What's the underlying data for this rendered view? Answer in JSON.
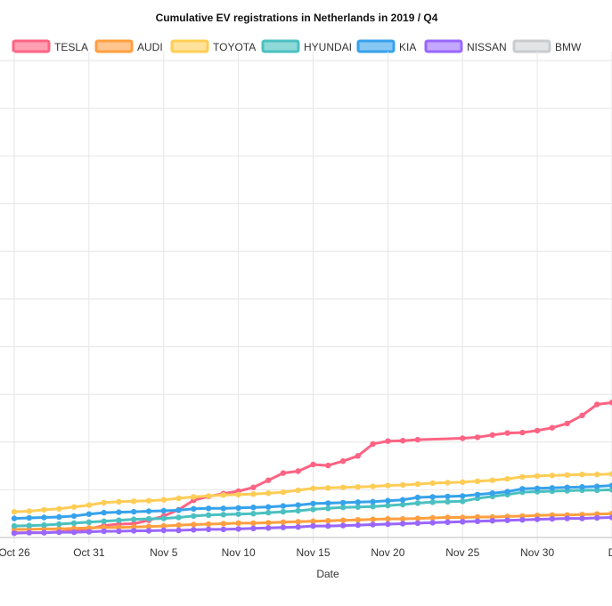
{
  "chart_data": {
    "type": "line",
    "title": "Cumulative EV registrations in Netherlands in 2019 / Q4",
    "xlabel": "Date",
    "ylabel": "",
    "x_axis": {
      "type": "date",
      "start": "2019-10-26",
      "end": "2019-12-05"
    },
    "x_ticks": [
      {
        "date": "2019-10-26",
        "label": "Oct 26"
      },
      {
        "date": "2019-10-31",
        "label": "Oct 31"
      },
      {
        "date": "2019-11-05",
        "label": "Nov 5"
      },
      {
        "date": "2019-11-10",
        "label": "Nov 10"
      },
      {
        "date": "2019-11-15",
        "label": "Nov 15"
      },
      {
        "date": "2019-11-20",
        "label": "Nov 20"
      },
      {
        "date": "2019-11-25",
        "label": "Nov 25"
      },
      {
        "date": "2019-11-30",
        "label": "Nov 30"
      },
      {
        "date": "2019-12-05",
        "label": "D"
      }
    ],
    "ylim": [
      0,
      100
    ],
    "y_gridlines": [
      0,
      10,
      20,
      30,
      40,
      50,
      60,
      70,
      80,
      90,
      100
    ],
    "grid": true,
    "legend": "top",
    "series": [
      {
        "name": "TESLA",
        "color": "#ff6384",
        "fill": "#ff9fb2",
        "points": [
          [
            "2019-10-26",
            1.0
          ],
          [
            "2019-10-28",
            1.0
          ],
          [
            "2019-10-29",
            1.2
          ],
          [
            "2019-10-30",
            1.4
          ],
          [
            "2019-10-31",
            1.8
          ],
          [
            "2019-11-01",
            2.5
          ],
          [
            "2019-11-02",
            2.8
          ],
          [
            "2019-11-03",
            2.9
          ],
          [
            "2019-11-04",
            3.6
          ],
          [
            "2019-11-05",
            4.5
          ],
          [
            "2019-11-06",
            5.8
          ],
          [
            "2019-11-07",
            7.8
          ],
          [
            "2019-11-08",
            8.6
          ],
          [
            "2019-11-09",
            9.2
          ],
          [
            "2019-11-10",
            9.7
          ],
          [
            "2019-11-11",
            10.5
          ],
          [
            "2019-11-12",
            12.0
          ],
          [
            "2019-11-13",
            13.5
          ],
          [
            "2019-11-14",
            13.9
          ],
          [
            "2019-11-15",
            15.3
          ],
          [
            "2019-11-16",
            15.1
          ],
          [
            "2019-11-17",
            16.0
          ],
          [
            "2019-11-18",
            17.1
          ],
          [
            "2019-11-19",
            19.6
          ],
          [
            "2019-11-20",
            20.2
          ],
          [
            "2019-11-21",
            20.3
          ],
          [
            "2019-11-22",
            20.5
          ],
          [
            "2019-11-25",
            20.8
          ],
          [
            "2019-11-26",
            21.0
          ],
          [
            "2019-11-27",
            21.5
          ],
          [
            "2019-11-28",
            21.9
          ],
          [
            "2019-11-29",
            22.0
          ],
          [
            "2019-11-30",
            22.4
          ],
          [
            "2019-12-01",
            23.0
          ],
          [
            "2019-12-02",
            23.9
          ],
          [
            "2019-12-03",
            25.6
          ],
          [
            "2019-12-04",
            27.9
          ],
          [
            "2019-12-05",
            28.3
          ]
        ]
      },
      {
        "name": "AUDI",
        "color": "#ff9f40",
        "fill": "#ffc58e",
        "points": [
          [
            "2019-10-26",
            1.7
          ],
          [
            "2019-10-27",
            1.7
          ],
          [
            "2019-10-28",
            1.8
          ],
          [
            "2019-10-29",
            1.8
          ],
          [
            "2019-10-30",
            1.9
          ],
          [
            "2019-10-31",
            2.0
          ],
          [
            "2019-11-01",
            2.1
          ],
          [
            "2019-11-02",
            2.1
          ],
          [
            "2019-11-03",
            2.2
          ],
          [
            "2019-11-04",
            2.3
          ],
          [
            "2019-11-05",
            2.4
          ],
          [
            "2019-11-06",
            2.6
          ],
          [
            "2019-11-07",
            2.7
          ],
          [
            "2019-11-08",
            2.8
          ],
          [
            "2019-11-09",
            2.9
          ],
          [
            "2019-11-10",
            3.0
          ],
          [
            "2019-11-11",
            3.0
          ],
          [
            "2019-11-12",
            3.1
          ],
          [
            "2019-11-13",
            3.2
          ],
          [
            "2019-11-14",
            3.3
          ],
          [
            "2019-11-15",
            3.4
          ],
          [
            "2019-11-16",
            3.5
          ],
          [
            "2019-11-17",
            3.6
          ],
          [
            "2019-11-18",
            3.7
          ],
          [
            "2019-11-19",
            3.8
          ],
          [
            "2019-11-20",
            3.9
          ],
          [
            "2019-11-21",
            3.9
          ],
          [
            "2019-11-22",
            4.0
          ],
          [
            "2019-11-23",
            4.1
          ],
          [
            "2019-11-24",
            4.2
          ],
          [
            "2019-11-25",
            4.2
          ],
          [
            "2019-11-26",
            4.3
          ],
          [
            "2019-11-27",
            4.3
          ],
          [
            "2019-11-28",
            4.4
          ],
          [
            "2019-11-29",
            4.5
          ],
          [
            "2019-11-30",
            4.6
          ],
          [
            "2019-12-01",
            4.7
          ],
          [
            "2019-12-02",
            4.7
          ],
          [
            "2019-12-03",
            4.8
          ],
          [
            "2019-12-04",
            4.9
          ],
          [
            "2019-12-05",
            5.0
          ]
        ]
      },
      {
        "name": "TOYOTA",
        "color": "#ffcd56",
        "fill": "#ffe29c",
        "points": [
          [
            "2019-10-26",
            5.4
          ],
          [
            "2019-10-27",
            5.5
          ],
          [
            "2019-10-28",
            5.8
          ],
          [
            "2019-10-29",
            6.0
          ],
          [
            "2019-10-30",
            6.4
          ],
          [
            "2019-10-31",
            6.8
          ],
          [
            "2019-11-01",
            7.3
          ],
          [
            "2019-11-02",
            7.5
          ],
          [
            "2019-11-03",
            7.6
          ],
          [
            "2019-11-04",
            7.7
          ],
          [
            "2019-11-05",
            7.9
          ],
          [
            "2019-11-06",
            8.2
          ],
          [
            "2019-11-07",
            8.5
          ],
          [
            "2019-11-08",
            8.7
          ],
          [
            "2019-11-09",
            8.9
          ],
          [
            "2019-11-10",
            9.0
          ],
          [
            "2019-11-11",
            9.1
          ],
          [
            "2019-11-12",
            9.3
          ],
          [
            "2019-11-13",
            9.5
          ],
          [
            "2019-11-14",
            9.9
          ],
          [
            "2019-11-15",
            10.3
          ],
          [
            "2019-11-16",
            10.4
          ],
          [
            "2019-11-17",
            10.5
          ],
          [
            "2019-11-18",
            10.6
          ],
          [
            "2019-11-19",
            10.7
          ],
          [
            "2019-11-20",
            10.9
          ],
          [
            "2019-11-21",
            11.0
          ],
          [
            "2019-11-22",
            11.2
          ],
          [
            "2019-11-23",
            11.4
          ],
          [
            "2019-11-24",
            11.5
          ],
          [
            "2019-11-25",
            11.6
          ],
          [
            "2019-11-26",
            11.8
          ],
          [
            "2019-11-27",
            12.0
          ],
          [
            "2019-11-28",
            12.3
          ],
          [
            "2019-11-29",
            12.7
          ],
          [
            "2019-11-30",
            12.9
          ],
          [
            "2019-12-01",
            13.0
          ],
          [
            "2019-12-02",
            13.1
          ],
          [
            "2019-12-03",
            13.2
          ],
          [
            "2019-12-04",
            13.2
          ],
          [
            "2019-12-05",
            13.3
          ]
        ]
      },
      {
        "name": "HYUNDAI",
        "color": "#4bc0c0",
        "fill": "#8fd8d8",
        "points": [
          [
            "2019-10-26",
            2.4
          ],
          [
            "2019-10-27",
            2.5
          ],
          [
            "2019-10-28",
            2.6
          ],
          [
            "2019-10-29",
            2.8
          ],
          [
            "2019-10-30",
            3.0
          ],
          [
            "2019-10-31",
            3.2
          ],
          [
            "2019-11-01",
            3.4
          ],
          [
            "2019-11-02",
            3.6
          ],
          [
            "2019-11-03",
            3.8
          ],
          [
            "2019-11-04",
            3.9
          ],
          [
            "2019-11-05",
            4.0
          ],
          [
            "2019-11-06",
            4.2
          ],
          [
            "2019-11-07",
            4.5
          ],
          [
            "2019-11-08",
            4.7
          ],
          [
            "2019-11-09",
            4.8
          ],
          [
            "2019-11-10",
            4.9
          ],
          [
            "2019-11-11",
            5.0
          ],
          [
            "2019-11-12",
            5.2
          ],
          [
            "2019-11-13",
            5.4
          ],
          [
            "2019-11-14",
            5.6
          ],
          [
            "2019-11-15",
            5.9
          ],
          [
            "2019-11-16",
            6.1
          ],
          [
            "2019-11-17",
            6.3
          ],
          [
            "2019-11-18",
            6.4
          ],
          [
            "2019-11-19",
            6.5
          ],
          [
            "2019-11-20",
            6.7
          ],
          [
            "2019-11-21",
            6.9
          ],
          [
            "2019-11-22",
            7.2
          ],
          [
            "2019-11-23",
            7.4
          ],
          [
            "2019-11-24",
            7.5
          ],
          [
            "2019-11-25",
            7.6
          ],
          [
            "2019-11-26",
            8.2
          ],
          [
            "2019-11-27",
            8.6
          ],
          [
            "2019-11-28",
            9.0
          ],
          [
            "2019-11-29",
            9.5
          ],
          [
            "2019-11-30",
            9.6
          ],
          [
            "2019-12-01",
            9.7
          ],
          [
            "2019-12-02",
            9.8
          ],
          [
            "2019-12-03",
            9.9
          ],
          [
            "2019-12-04",
            9.9
          ],
          [
            "2019-12-05",
            10.0
          ]
        ]
      },
      {
        "name": "KIA",
        "color": "#36a2eb",
        "fill": "#86c7f3",
        "points": [
          [
            "2019-10-26",
            4.0
          ],
          [
            "2019-10-27",
            4.1
          ],
          [
            "2019-10-28",
            4.2
          ],
          [
            "2019-10-29",
            4.3
          ],
          [
            "2019-10-30",
            4.5
          ],
          [
            "2019-10-31",
            4.9
          ],
          [
            "2019-11-01",
            5.2
          ],
          [
            "2019-11-02",
            5.3
          ],
          [
            "2019-11-03",
            5.4
          ],
          [
            "2019-11-04",
            5.5
          ],
          [
            "2019-11-05",
            5.6
          ],
          [
            "2019-11-06",
            5.7
          ],
          [
            "2019-11-07",
            6.0
          ],
          [
            "2019-11-08",
            6.1
          ],
          [
            "2019-11-09",
            6.1
          ],
          [
            "2019-11-10",
            6.2
          ],
          [
            "2019-11-11",
            6.3
          ],
          [
            "2019-11-12",
            6.4
          ],
          [
            "2019-11-13",
            6.6
          ],
          [
            "2019-11-14",
            6.8
          ],
          [
            "2019-11-15",
            7.1
          ],
          [
            "2019-11-16",
            7.2
          ],
          [
            "2019-11-17",
            7.3
          ],
          [
            "2019-11-18",
            7.4
          ],
          [
            "2019-11-19",
            7.5
          ],
          [
            "2019-11-20",
            7.7
          ],
          [
            "2019-11-21",
            7.9
          ],
          [
            "2019-11-22",
            8.4
          ],
          [
            "2019-11-23",
            8.5
          ],
          [
            "2019-11-24",
            8.6
          ],
          [
            "2019-11-25",
            8.7
          ],
          [
            "2019-11-26",
            9.0
          ],
          [
            "2019-11-27",
            9.3
          ],
          [
            "2019-11-28",
            9.6
          ],
          [
            "2019-11-29",
            10.2
          ],
          [
            "2019-11-30",
            10.3
          ],
          [
            "2019-12-01",
            10.4
          ],
          [
            "2019-12-02",
            10.5
          ],
          [
            "2019-12-03",
            10.6
          ],
          [
            "2019-12-04",
            10.7
          ],
          [
            "2019-12-05",
            10.9
          ]
        ]
      },
      {
        "name": "NISSAN",
        "color": "#9966ff",
        "fill": "#c4a8ff",
        "points": [
          [
            "2019-10-26",
            0.9
          ],
          [
            "2019-10-27",
            1.0
          ],
          [
            "2019-10-28",
            1.0
          ],
          [
            "2019-10-29",
            1.1
          ],
          [
            "2019-10-30",
            1.1
          ],
          [
            "2019-10-31",
            1.2
          ],
          [
            "2019-11-01",
            1.3
          ],
          [
            "2019-11-02",
            1.3
          ],
          [
            "2019-11-03",
            1.4
          ],
          [
            "2019-11-04",
            1.4
          ],
          [
            "2019-11-05",
            1.5
          ],
          [
            "2019-11-06",
            1.5
          ],
          [
            "2019-11-07",
            1.6
          ],
          [
            "2019-11-08",
            1.7
          ],
          [
            "2019-11-09",
            1.7
          ],
          [
            "2019-11-10",
            1.8
          ],
          [
            "2019-11-11",
            1.9
          ],
          [
            "2019-11-12",
            2.0
          ],
          [
            "2019-11-13",
            2.1
          ],
          [
            "2019-11-14",
            2.2
          ],
          [
            "2019-11-15",
            2.4
          ],
          [
            "2019-11-16",
            2.4
          ],
          [
            "2019-11-17",
            2.5
          ],
          [
            "2019-11-18",
            2.6
          ],
          [
            "2019-11-19",
            2.7
          ],
          [
            "2019-11-20",
            2.8
          ],
          [
            "2019-11-21",
            2.9
          ],
          [
            "2019-11-22",
            3.0
          ],
          [
            "2019-11-23",
            3.1
          ],
          [
            "2019-11-24",
            3.2
          ],
          [
            "2019-11-25",
            3.3
          ],
          [
            "2019-11-26",
            3.4
          ],
          [
            "2019-11-27",
            3.5
          ],
          [
            "2019-11-28",
            3.6
          ],
          [
            "2019-11-29",
            3.7
          ],
          [
            "2019-11-30",
            3.8
          ],
          [
            "2019-12-01",
            3.9
          ],
          [
            "2019-12-02",
            4.0
          ],
          [
            "2019-12-03",
            4.0
          ],
          [
            "2019-12-04",
            4.1
          ],
          [
            "2019-12-05",
            4.2
          ]
        ]
      },
      {
        "name": "BMW",
        "color": "#c9cbcf",
        "fill": "#e3e4e6",
        "points": []
      }
    ]
  }
}
